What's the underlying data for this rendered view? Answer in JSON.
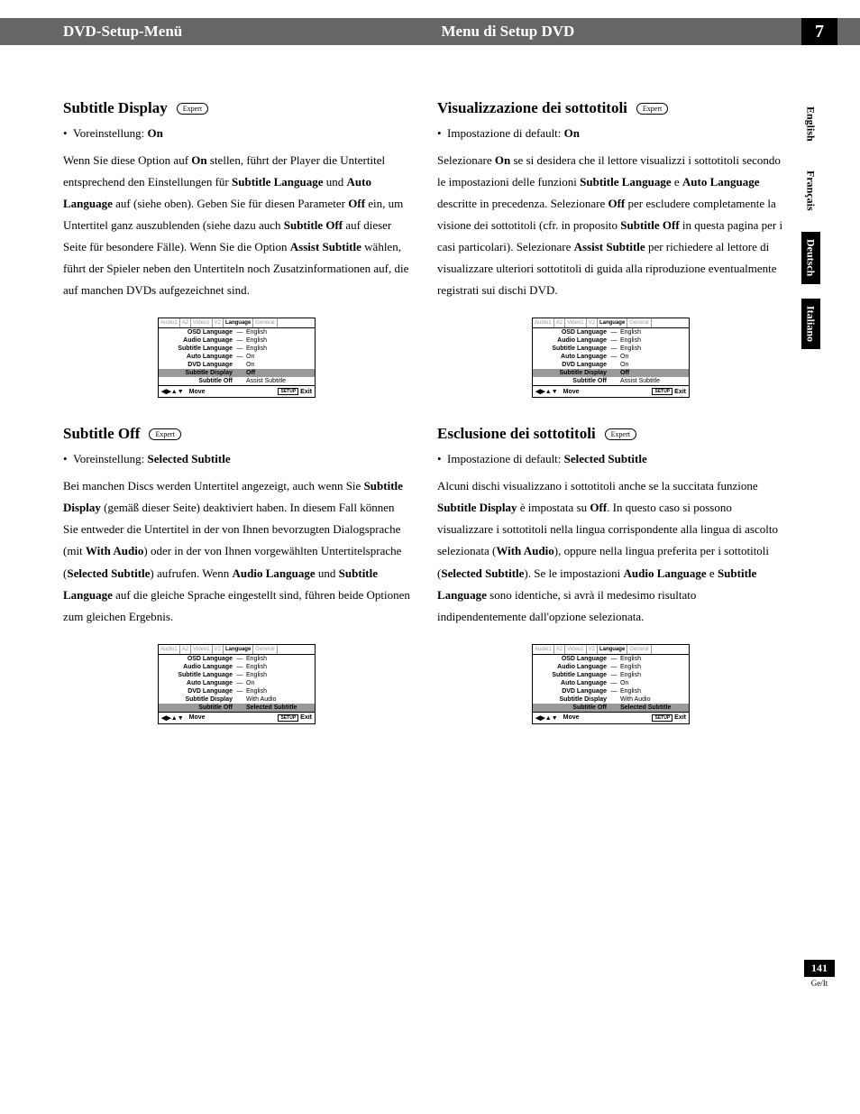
{
  "header": {
    "left": "DVD-Setup-Menü",
    "right": "Menu di Setup DVD",
    "chapter": "7"
  },
  "sideTabs": [
    "English",
    "Français",
    "Deutsch",
    "Italiano"
  ],
  "activeTabs": [
    "Deutsch",
    "Italiano"
  ],
  "expertLabel": "Expert",
  "menuTabs": [
    "Audio1",
    "A2",
    "Video1",
    "V2",
    "Language",
    "General"
  ],
  "menuFooter": {
    "move": "Move",
    "setup": "SETUP",
    "exit": "Exit"
  },
  "menuRowsA": [
    {
      "label": "OSD Language",
      "dash": "—",
      "val": "English"
    },
    {
      "label": "Audio Language",
      "dash": "—",
      "val": "English"
    },
    {
      "label": "Subtitle Language",
      "dash": "—",
      "val": "English"
    },
    {
      "label": "Auto Language",
      "dash": "—",
      "val": "On"
    },
    {
      "label": "DVD Language",
      "dash": "",
      "val": "On"
    },
    {
      "label": "Subtitle Display",
      "dash": "",
      "val": "Off",
      "hl": true
    },
    {
      "label": "Subtitle Off",
      "dash": "",
      "val": "Assist Subtitle"
    }
  ],
  "menuRowsB": [
    {
      "label": "OSD Language",
      "dash": "—",
      "val": "English"
    },
    {
      "label": "Audio Language",
      "dash": "—",
      "val": "English"
    },
    {
      "label": "Subtitle Language",
      "dash": "—",
      "val": "English"
    },
    {
      "label": "Auto Language",
      "dash": "—",
      "val": "On"
    },
    {
      "label": "DVD Language",
      "dash": "—",
      "val": "English"
    },
    {
      "label": "Subtitle Display",
      "dash": "",
      "val": "With Audio"
    },
    {
      "label": "Subtitle Off",
      "dash": "",
      "val": "Selected Subtitle",
      "hl": true
    }
  ],
  "left": {
    "s1": {
      "heading": "Subtitle Display",
      "bullet": "Voreinstellung: <b>On</b>",
      "para": "Wenn Sie diese Option auf <b>On</b> stellen, führt der Player die Untertitel entsprechend den Einstellungen für <b>Subtitle Language</b> und <b>Auto Language</b> auf (siehe oben). Geben Sie für diesen Parameter <b>Off</b> ein, um Untertitel ganz auszublenden (siehe dazu auch <b>Subtitle Off</b> auf  dieser Seite für besondere Fälle). Wenn Sie die Option <b>Assist Subtitle</b> wählen, führt der Spieler neben den Untertiteln noch Zusatzinformationen auf, die auf manchen DVDs aufgezeichnet sind."
    },
    "s2": {
      "heading": "Subtitle Off",
      "bullet": "Voreinstellung: <b>Selected Subtitle</b>",
      "para": "Bei manchen Discs werden Untertitel angezeigt, auch wenn Sie <b>Subtitle Display</b> (gemäß dieser Seite) deaktiviert haben. In diesem Fall können Sie entweder die Untertitel in der von Ihnen bevorzugten Dialogsprache (mit <b>With Audio</b>) oder in der von Ihnen vorgewählten Untertitelsprache (<b>Selected Subtitle</b>) aufrufen. Wenn <b>Audio Language</b> und <b>Subtitle Language</b>  auf die gleiche Sprache eingestellt sind, führen beide Optionen zum gleichen Ergebnis."
    }
  },
  "right": {
    "s1": {
      "heading": "Visualizzazione dei sottotitoli",
      "bullet": "Impostazione di default: <b>On</b>",
      "para": "Selezionare <b>On</b> se si desidera che il lettore visualizzi i sottotitoli secondo le impostazioni delle funzioni <b>Subtitle Language</b> e <b>Auto Language</b> descritte in precedenza. Selezionare <b>Off</b> per escludere completamente la visione dei sottotitoli (cfr. in proposito <b>Subtitle Off</b> in questa pagina per i casi particolari). Selezionare <b>Assist Subtitle</b> per richiedere al lettore di visualizzare ulteriori sottotitoli di guida alla riproduzione eventualmente registrati sui dischi DVD."
    },
    "s2": {
      "heading": "Esclusione dei sottotitoli",
      "bullet": "Impostazione di default: <b>Selected Subtitle</b>",
      "para": "Alcuni dischi visualizzano i sottotitoli anche se la succitata funzione <b>Subtitle Display</b> è impostata su <b>Off</b>. In questo caso si possono visualizzare i sottotitoli nella lingua corrispondente alla lingua di ascolto selezionata (<b>With Audio</b>), oppure nella lingua preferita per i sottotitoli (<b>Selected Subtitle</b>). Se le impostazioni <b>Audio Language</b> e <b>Subtitle Language</b> sono identiche, si avrà il medesimo risultato indipendentemente dall'opzione selezionata."
    }
  },
  "footer": {
    "pageNum": "141",
    "lang": "Ge/It"
  }
}
